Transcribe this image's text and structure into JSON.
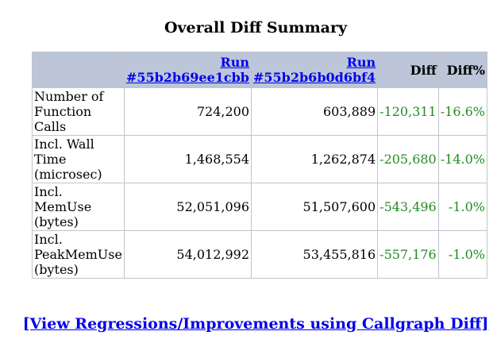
{
  "page": {
    "title": "Overall Diff Summary",
    "callgraph_link": "[View Regressions/Improvements using Callgraph Diff]"
  },
  "table": {
    "headers": {
      "run1_line1": "Run",
      "run1_line2": "#55b2b69ee1cbb",
      "run2_line1": "Run",
      "run2_line2": "#55b2b6b0d6bf4",
      "diff": "Diff",
      "diff_pct": "Diff%"
    },
    "rows": [
      {
        "label_lines": [
          "Number of",
          "Function",
          "Calls"
        ],
        "run1": "724,200",
        "run2": "603,889",
        "diff": "-120,311",
        "pct": "-16.6%"
      },
      {
        "label_lines": [
          "Incl. Wall",
          "Time",
          "(microsec)"
        ],
        "run1": "1,468,554",
        "run2": "1,262,874",
        "diff": "-205,680",
        "pct": "-14.0%"
      },
      {
        "label_lines": [
          "Incl.",
          "MemUse",
          "(bytes)"
        ],
        "run1": "52,051,096",
        "run2": "51,507,600",
        "diff": "-543,496",
        "pct": "-1.0%"
      },
      {
        "label_lines": [
          "Incl.",
          "PeakMemUse",
          "(bytes)"
        ],
        "run1": "54,012,992",
        "run2": "53,455,816",
        "diff": "-557,176",
        "pct": "-1.0%"
      }
    ]
  },
  "colors": {
    "header_bg": "#bcc6d8",
    "link": "#0000ee",
    "negative_diff": "#228b22",
    "border": "#c0c4cc"
  }
}
